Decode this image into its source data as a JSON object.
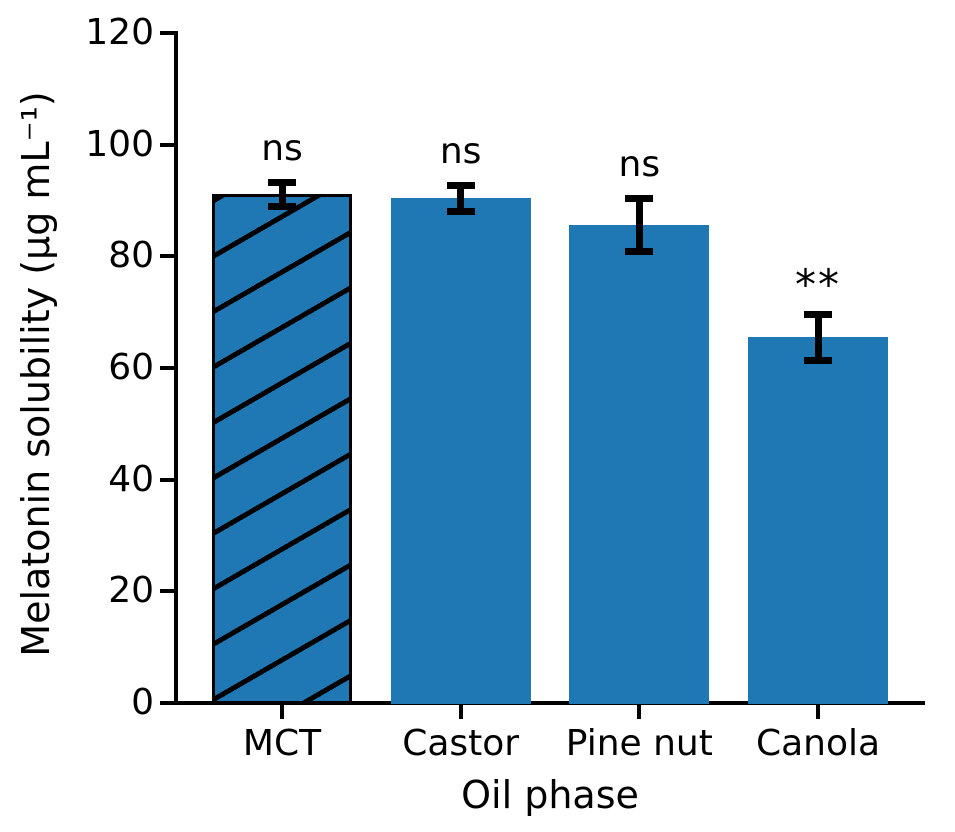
{
  "chart_data": {
    "type": "bar",
    "title": "",
    "xlabel": "Oil phase",
    "ylabel": "Melatonin solubility (µg mL⁻¹)",
    "categories": [
      "MCT",
      "Castor",
      "Pine nut",
      "Canola"
    ],
    "values": [
      91.1,
      90.4,
      85.6,
      65.5
    ],
    "errors": [
      2.2,
      2.3,
      4.8,
      4.1
    ],
    "annotations": [
      "ns",
      "ns",
      "ns",
      "**"
    ],
    "hatch": [
      "/",
      null,
      null,
      null
    ],
    "yticks": [
      0,
      20,
      40,
      60,
      80,
      100,
      120
    ],
    "ylim": [
      0,
      120
    ],
    "grid": false,
    "legend": null,
    "bar_color": "#1f77b4",
    "error_color": "#000000",
    "hatch_color": "#000000"
  }
}
